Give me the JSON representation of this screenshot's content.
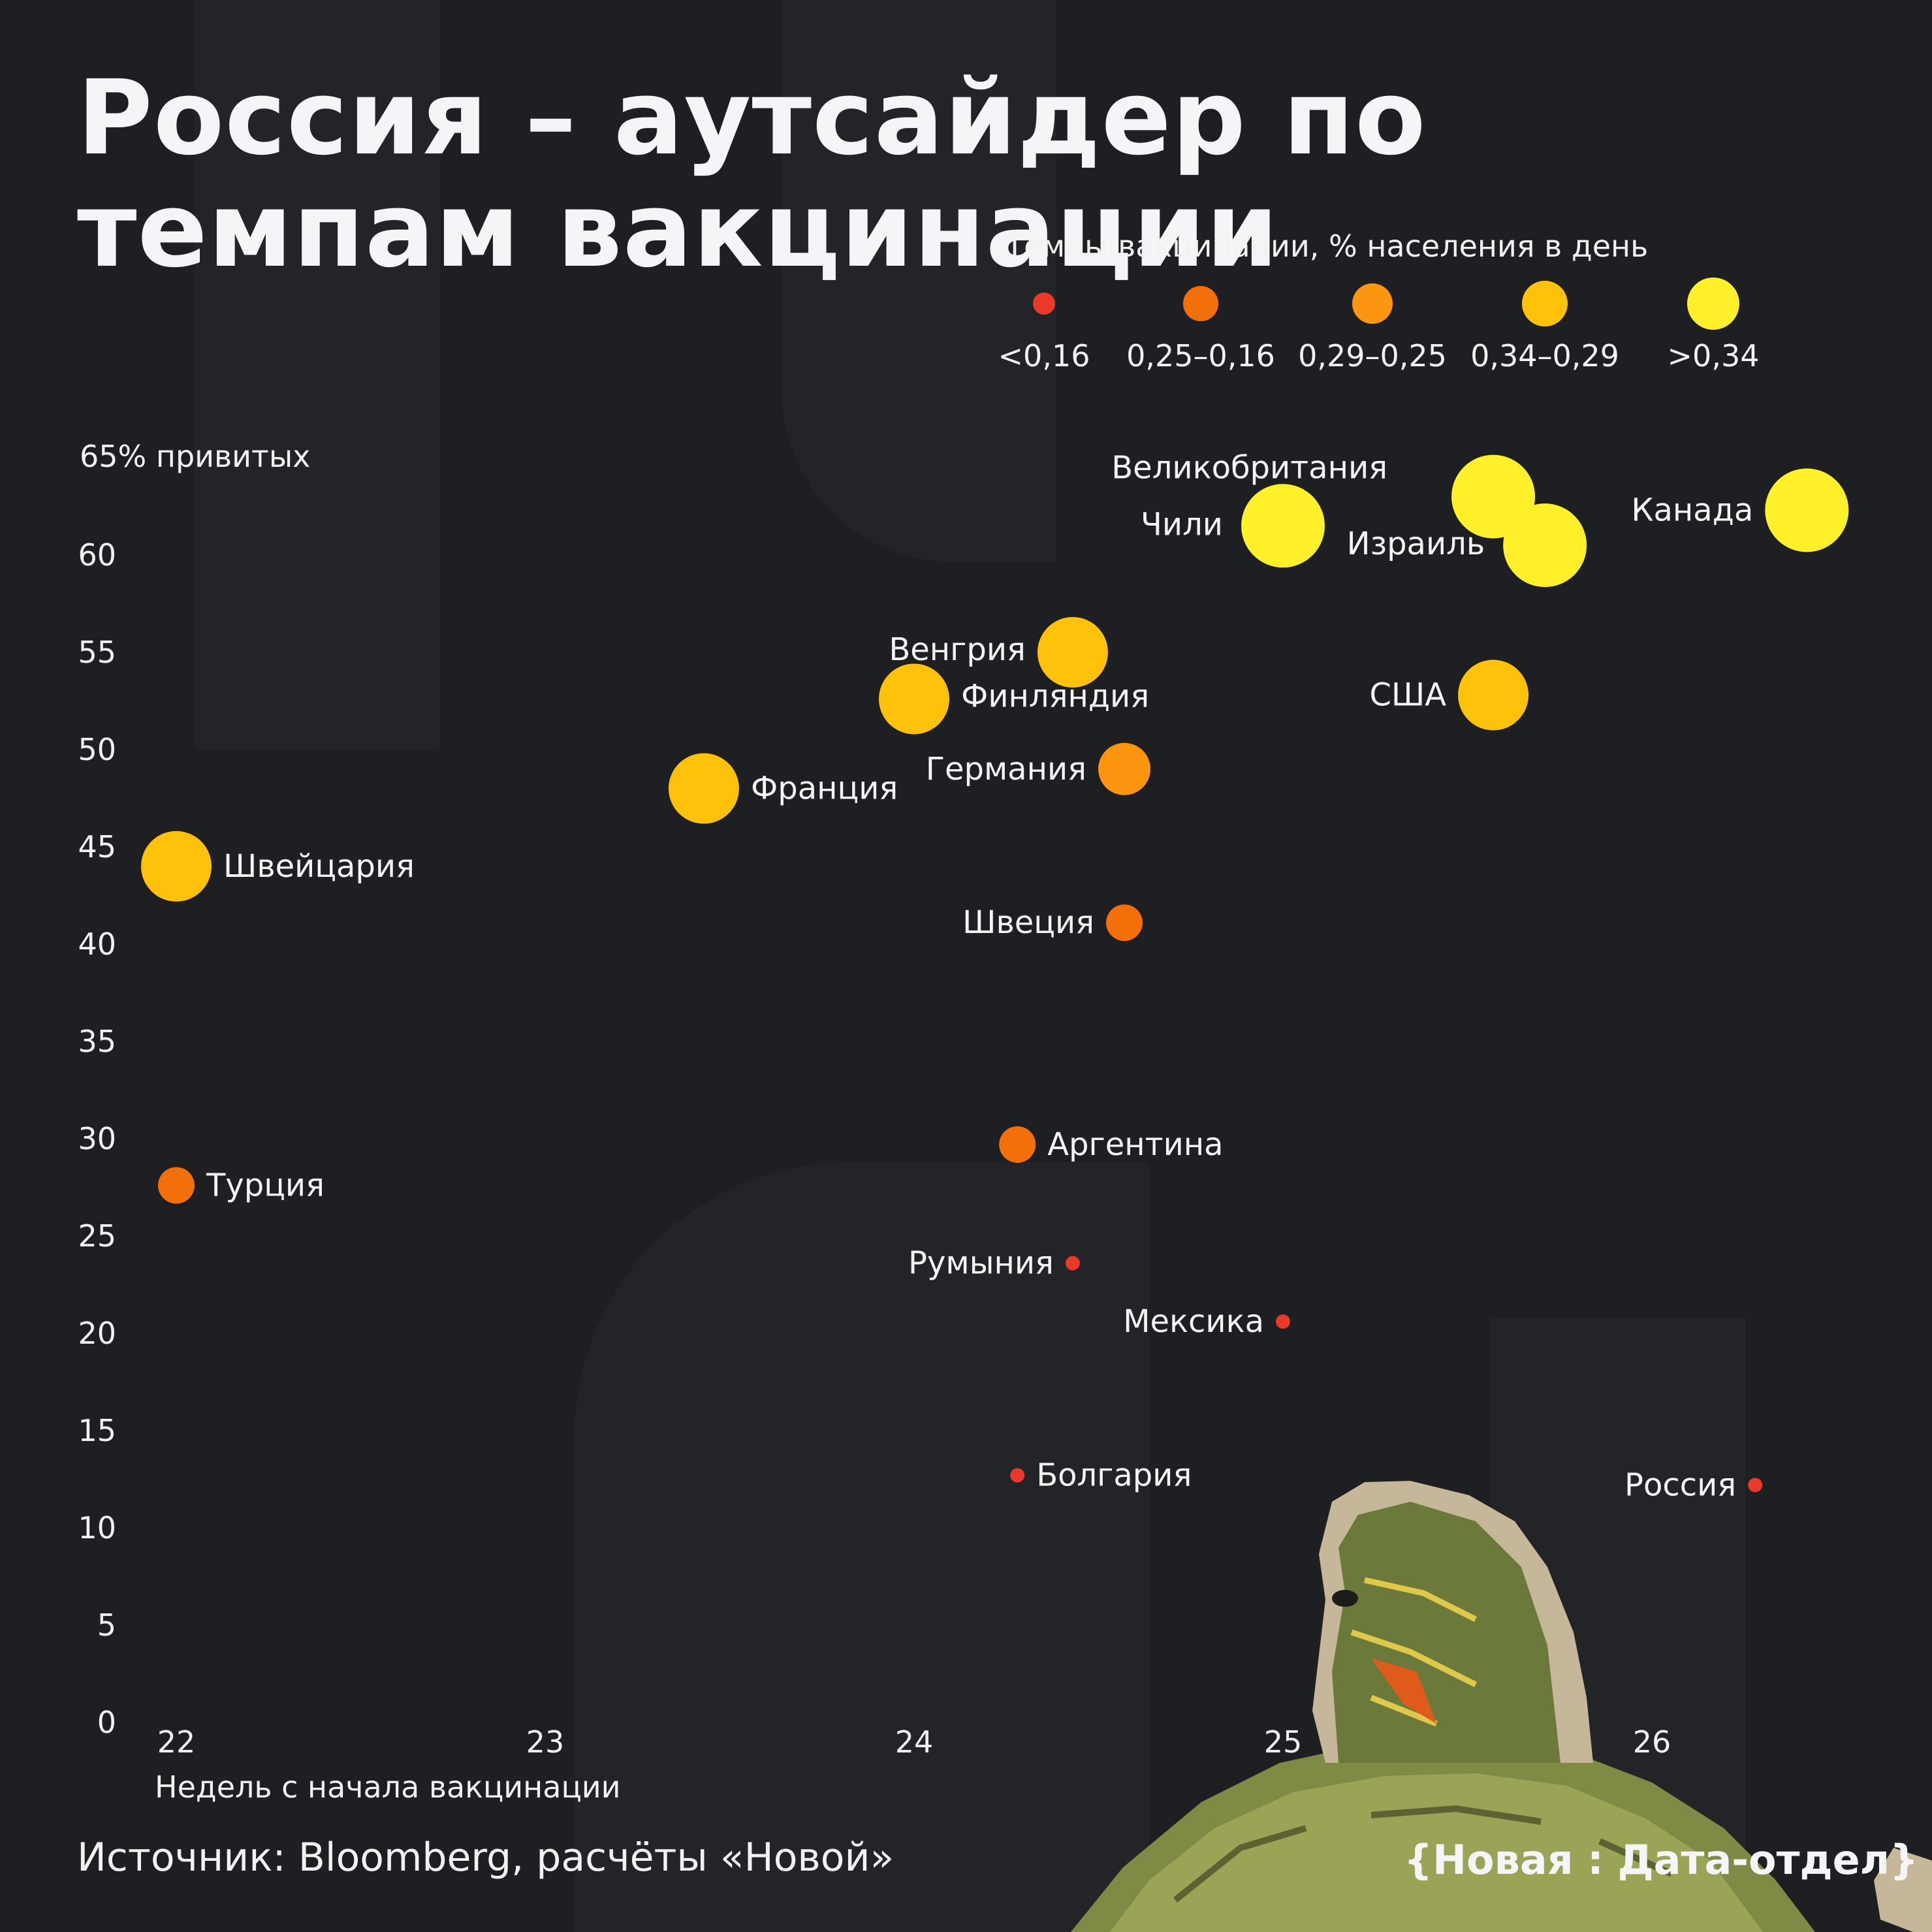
{
  "title": "Россия – аутсайдер по темпам вакцинации",
  "legend": {
    "title": "Темпы вакцинации, % населения в день",
    "items": [
      {
        "label": "<0,16",
        "color": "#e8392a",
        "size": "xs"
      },
      {
        "label": "0,25–0,16",
        "color": "#f26f0a",
        "size": "s"
      },
      {
        "label": "0,29–0,25",
        "color": "#fc950f",
        "size": "m"
      },
      {
        "label": "0,34–0,29",
        "color": "#ffc20a",
        "size": "l"
      },
      {
        "label": ">0,34",
        "color": "#fff02a",
        "size": "xl"
      }
    ]
  },
  "y_axis_label": "65% привитых",
  "x_axis_label": "Недель с начала вакцинации",
  "source": "Источник: Bloomberg, расчёты «Новой»",
  "brand": "{Новая : Дата-отдел}",
  "chart_data": {
    "type": "scatter",
    "xlabel": "Недель с начала вакцинации",
    "ylabel": "65% привитых",
    "xlim": [
      22,
      26.4
    ],
    "ylim": [
      0,
      65
    ],
    "xticks": [
      "22",
      "23",
      "24",
      "25",
      "26"
    ],
    "yticks": [
      "0",
      "5",
      "10",
      "15",
      "20",
      "25",
      "30",
      "35",
      "40",
      "45",
      "50",
      "55",
      "60"
    ],
    "size_encoding": "Темпы вакцинации, % населения в день",
    "points": [
      {
        "name": "Великобритания",
        "x": 25.57,
        "y": 63.0,
        "category": ">0,34"
      },
      {
        "name": "Канада",
        "x": 26.42,
        "y": 62.3,
        "category": ">0,34"
      },
      {
        "name": "Чили",
        "x": 25.0,
        "y": 61.5,
        "category": ">0,34"
      },
      {
        "name": "Израиль",
        "x": 25.71,
        "y": 60.5,
        "category": ">0,34"
      },
      {
        "name": "Венгрия",
        "x": 24.43,
        "y": 55.0,
        "category": "0,34–0,29"
      },
      {
        "name": "США",
        "x": 25.57,
        "y": 52.8,
        "category": "0,34–0,29"
      },
      {
        "name": "Финляндия",
        "x": 24.0,
        "y": 52.6,
        "category": "0,34–0,29"
      },
      {
        "name": "Германия",
        "x": 24.57,
        "y": 49.0,
        "category": "0,29–0,25"
      },
      {
        "name": "Франция",
        "x": 23.43,
        "y": 48.0,
        "category": "0,34–0,29"
      },
      {
        "name": "Швейцария",
        "x": 22.0,
        "y": 44.0,
        "category": "0,34–0,29"
      },
      {
        "name": "Швеция",
        "x": 24.57,
        "y": 41.1,
        "category": "0,25–0,16"
      },
      {
        "name": "Аргентина",
        "x": 24.28,
        "y": 29.7,
        "category": "0,25–0,16"
      },
      {
        "name": "Турция",
        "x": 22.0,
        "y": 27.6,
        "category": "0,25–0,16"
      },
      {
        "name": "Румыния",
        "x": 24.43,
        "y": 23.6,
        "category": "<0,16"
      },
      {
        "name": "Мексика",
        "x": 25.0,
        "y": 20.6,
        "category": "<0,16"
      },
      {
        "name": "Болгария",
        "x": 24.28,
        "y": 12.7,
        "category": "<0,16"
      },
      {
        "name": "Россия",
        "x": 26.28,
        "y": 12.2,
        "category": "<0,16"
      }
    ]
  }
}
